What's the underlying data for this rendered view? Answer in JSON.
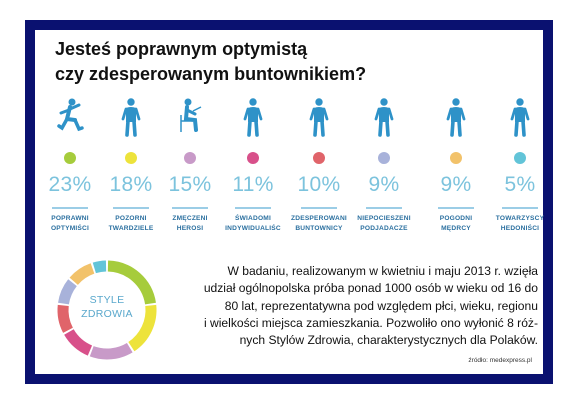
{
  "title_lines": [
    "Jesteś poprawnym optymistą",
    "czy zdesperowanym buntownikiem?"
  ],
  "chart_data": {
    "type": "bar",
    "categories": [
      "POPRAWNI OPTYMIŚCI",
      "POZORNI TWARDZIELE",
      "ZMĘCZENI HEROSI",
      "ŚWIADOMI INDYWIDUALIŚC",
      "ZDESPEROWANI BUNTOWNICY",
      "NIEPOCIESZENI PODJADACZE",
      "POGODNI MĘDRCY",
      "TOWARZYSCY HEDONIŚCI"
    ],
    "values": [
      23,
      18,
      15,
      11,
      10,
      9,
      9,
      5
    ],
    "value_labels": [
      "23%",
      "18%",
      "15%",
      "11%",
      "10%",
      "9%",
      "9%",
      "5%"
    ],
    "label_lines": [
      [
        "POPRAWNI",
        "OPTYMIŚCI"
      ],
      [
        "POZORNI",
        "TWARDZIELE"
      ],
      [
        "ZMĘCZENI",
        "HEROSI"
      ],
      [
        "ŚWIADOMI",
        "INDYWIDUALIŚC"
      ],
      [
        "ZDESPEROWANI",
        "BUNTOWNICY"
      ],
      [
        "NIEPOCIESZENI",
        "PODJADACZE"
      ],
      [
        "POGODNI",
        "MĘDRCY"
      ],
      [
        "TOWARZYSCY",
        "HEDONIŚCI"
      ]
    ],
    "dot_colors": [
      "#a6cc3c",
      "#ede33b",
      "#c89ac8",
      "#d8508a",
      "#e0646a",
      "#a8b2da",
      "#f2c26a",
      "#62c4d8"
    ],
    "figure_icons": [
      "running-person-icon",
      "person-icon",
      "seated-person-icon",
      "person-icon",
      "person-icon",
      "person-icon",
      "person-icon",
      "person-icon"
    ],
    "donut_label_lines": [
      "STYLE",
      "ZDROWIA"
    ]
  },
  "colors": {
    "figure": "#2e92c8",
    "percent": "#7cc3dd",
    "label": "#2a6f9f",
    "frame": "#0a1170"
  },
  "description_lines": [
    "W badaniu, realizowanym w kwietniu i maju 2013 r. wzięła",
    "udział ogólnopolska próba ponad 1000 osób w wieku od 16 do",
    "80 lat, reprezentatywna pod względem płci, wieku, regionu",
    "i wielkości miejsca zamieszkania. Pozwoliło ono wyłonić 8 róż-",
    "nych Stylów Zdrowia, charakterystycznych dla Polaków."
  ],
  "source": "źródło: medexpress.pl"
}
